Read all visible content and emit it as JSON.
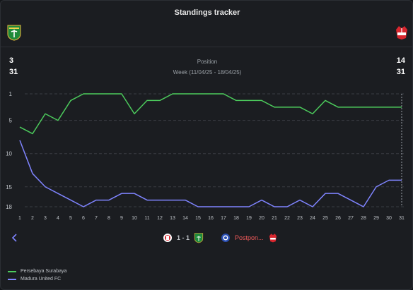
{
  "header": {
    "title": "Standings tracker"
  },
  "teams": {
    "home": {
      "name": "Persebaya Surabaya",
      "position": "3",
      "matches": "31",
      "color": "#4ccb5c"
    },
    "away": {
      "name": "Madura United FC",
      "position": "14",
      "matches": "31",
      "color": "#7f84ff"
    }
  },
  "info": {
    "label": "Position",
    "week": "Week (11/04/25 - 18/04/25)"
  },
  "matches": {
    "first": {
      "score": "1 - 1"
    },
    "second": {
      "status": "Postpon..."
    }
  },
  "legend": [
    {
      "label": "Persebaya Surabaya",
      "color": "#4ccb5c"
    },
    {
      "label": "Madura United FC",
      "color": "#7f84ff"
    }
  ],
  "chart_data": {
    "type": "line",
    "x": [
      1,
      2,
      3,
      4,
      5,
      6,
      7,
      8,
      9,
      10,
      11,
      12,
      13,
      14,
      15,
      16,
      17,
      18,
      19,
      20,
      21,
      22,
      23,
      24,
      25,
      26,
      27,
      28,
      29,
      30,
      31
    ],
    "y_ticks": [
      1,
      5,
      10,
      15,
      18
    ],
    "ylim": [
      1,
      18
    ],
    "y_inverted": true,
    "grid": "horizontal dashed",
    "legend_position": "bottom-left",
    "series": [
      {
        "name": "Persebaya Surabaya",
        "color": "#4ccb5c",
        "values": [
          6,
          7,
          4,
          5,
          2,
          1,
          1,
          1,
          1,
          4,
          2,
          2,
          1,
          1,
          1,
          1,
          1,
          2,
          2,
          2,
          3,
          3,
          3,
          4,
          2,
          3,
          3,
          3,
          3,
          3,
          3
        ]
      },
      {
        "name": "Madura United FC",
        "color": "#7f84ff",
        "values": [
          8,
          13,
          15,
          16,
          17,
          18,
          17,
          17,
          16,
          16,
          17,
          17,
          17,
          17,
          18,
          18,
          18,
          18,
          18,
          17,
          18,
          18,
          17,
          18,
          16,
          16,
          17,
          18,
          15,
          14,
          14
        ]
      }
    ]
  }
}
